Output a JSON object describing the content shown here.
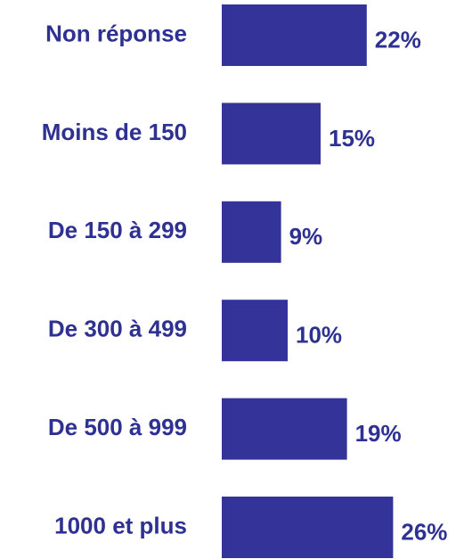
{
  "chart_data": {
    "type": "bar",
    "orientation": "horizontal",
    "categories": [
      "Non réponse",
      "Moins de 150",
      "De 150 à 299",
      "De 300 à 499",
      "De 500 à 999",
      "1000 et plus"
    ],
    "values": [
      22,
      15,
      9,
      10,
      19,
      26
    ],
    "value_labels": [
      "22%",
      "15%",
      "9%",
      "10%",
      "19%",
      "26%"
    ],
    "color": "#333399"
  }
}
